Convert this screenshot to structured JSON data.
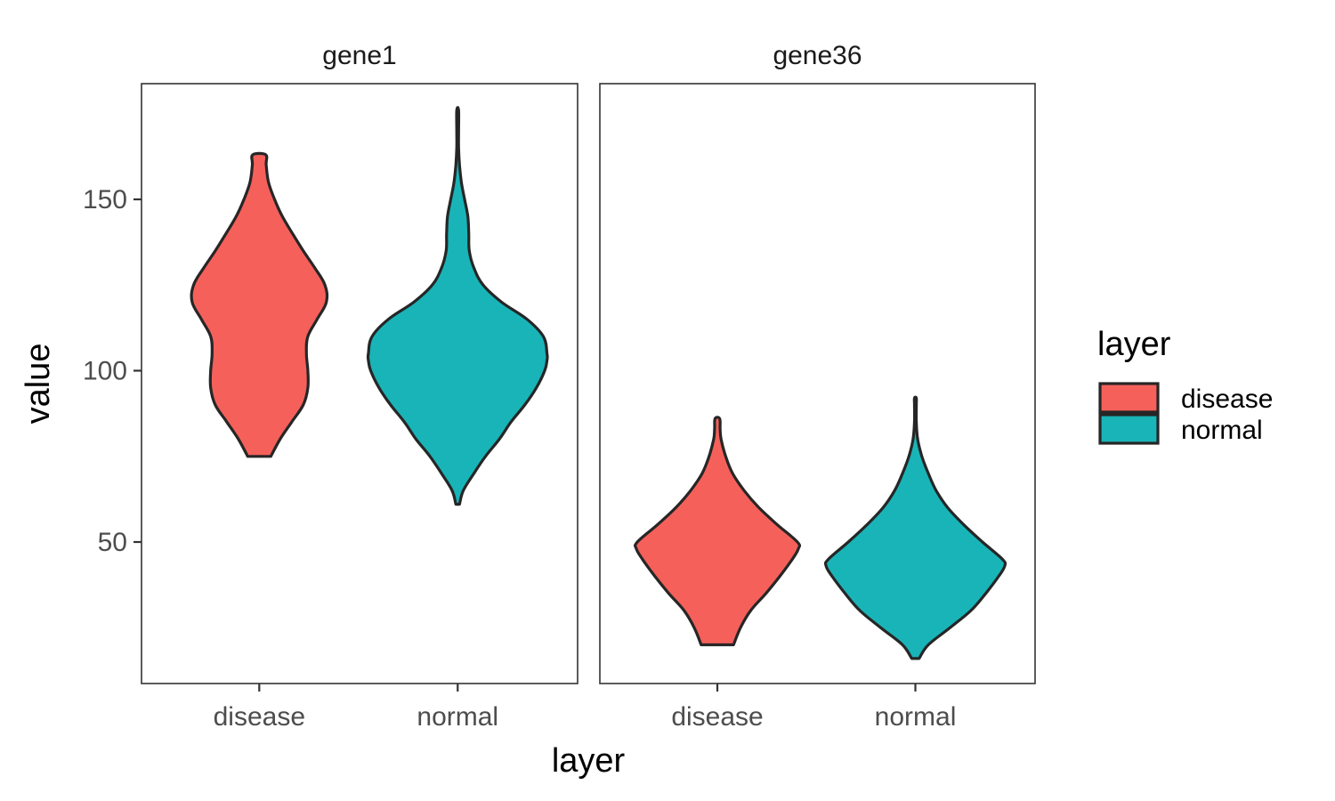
{
  "chart_data": {
    "type": "violin",
    "xlabel": "layer",
    "ylabel": "value",
    "ylim": [
      5,
      180
    ],
    "yticks": [
      50,
      100,
      150
    ],
    "categories": [
      "disease",
      "normal"
    ],
    "legend": {
      "title": "layer",
      "placement": "right",
      "entries": [
        {
          "label": "disease",
          "color": "#F8766D"
        },
        {
          "label": "normal",
          "color": "#00BFC4"
        }
      ]
    },
    "colors": {
      "disease": "#F5605B",
      "normal": "#19B4B8",
      "outline": "#262626"
    },
    "panels": [
      {
        "title": "gene1",
        "violins": [
          {
            "category": "disease",
            "profile": [
              [
                75,
                0.25
              ],
              [
                80,
                0.45
              ],
              [
                85,
                0.7
              ],
              [
                90,
                0.95
              ],
              [
                95,
                1.05
              ],
              [
                100,
                1.05
              ],
              [
                105,
                1.02
              ],
              [
                110,
                1.05
              ],
              [
                115,
                1.25
              ],
              [
                120,
                1.45
              ],
              [
                125,
                1.42
              ],
              [
                130,
                1.2
              ],
              [
                135,
                0.95
              ],
              [
                140,
                0.72
              ],
              [
                145,
                0.5
              ],
              [
                150,
                0.33
              ],
              [
                155,
                0.2
              ],
              [
                160,
                0.15
              ],
              [
                163,
                0.14
              ]
            ]
          },
          {
            "category": "normal",
            "profile": [
              [
                61,
                0.04
              ],
              [
                65,
                0.12
              ],
              [
                70,
                0.35
              ],
              [
                75,
                0.6
              ],
              [
                80,
                0.9
              ],
              [
                85,
                1.15
              ],
              [
                90,
                1.45
              ],
              [
                95,
                1.7
              ],
              [
                100,
                1.88
              ],
              [
                103,
                1.93
              ],
              [
                105,
                1.93
              ],
              [
                110,
                1.85
              ],
              [
                115,
                1.5
              ],
              [
                120,
                0.95
              ],
              [
                125,
                0.55
              ],
              [
                130,
                0.35
              ],
              [
                135,
                0.25
              ],
              [
                140,
                0.24
              ],
              [
                145,
                0.22
              ],
              [
                150,
                0.15
              ],
              [
                155,
                0.08
              ],
              [
                160,
                0.04
              ],
              [
                165,
                0.02
              ],
              [
                170,
                0.02
              ],
              [
                176,
                0.02
              ]
            ]
          }
        ]
      },
      {
        "title": "gene36",
        "violins": [
          {
            "category": "disease",
            "profile": [
              [
                20,
                0.35
              ],
              [
                25,
                0.5
              ],
              [
                30,
                0.72
              ],
              [
                35,
                1.05
              ],
              [
                40,
                1.35
              ],
              [
                45,
                1.62
              ],
              [
                48,
                1.75
              ],
              [
                50,
                1.73
              ],
              [
                55,
                1.3
              ],
              [
                60,
                0.9
              ],
              [
                65,
                0.58
              ],
              [
                70,
                0.33
              ],
              [
                75,
                0.18
              ],
              [
                80,
                0.08
              ],
              [
                83,
                0.06
              ],
              [
                86,
                0.05
              ]
            ]
          },
          {
            "category": "normal",
            "profile": [
              [
                16,
                0.08
              ],
              [
                20,
                0.28
              ],
              [
                25,
                0.75
              ],
              [
                30,
                1.2
              ],
              [
                35,
                1.52
              ],
              [
                40,
                1.8
              ],
              [
                43,
                1.93
              ],
              [
                45,
                1.88
              ],
              [
                50,
                1.45
              ],
              [
                55,
                1.05
              ],
              [
                60,
                0.7
              ],
              [
                65,
                0.45
              ],
              [
                70,
                0.28
              ],
              [
                75,
                0.14
              ],
              [
                80,
                0.05
              ],
              [
                85,
                0.02
              ],
              [
                90,
                0.02
              ],
              [
                92,
                0.02
              ]
            ]
          }
        ]
      }
    ]
  }
}
